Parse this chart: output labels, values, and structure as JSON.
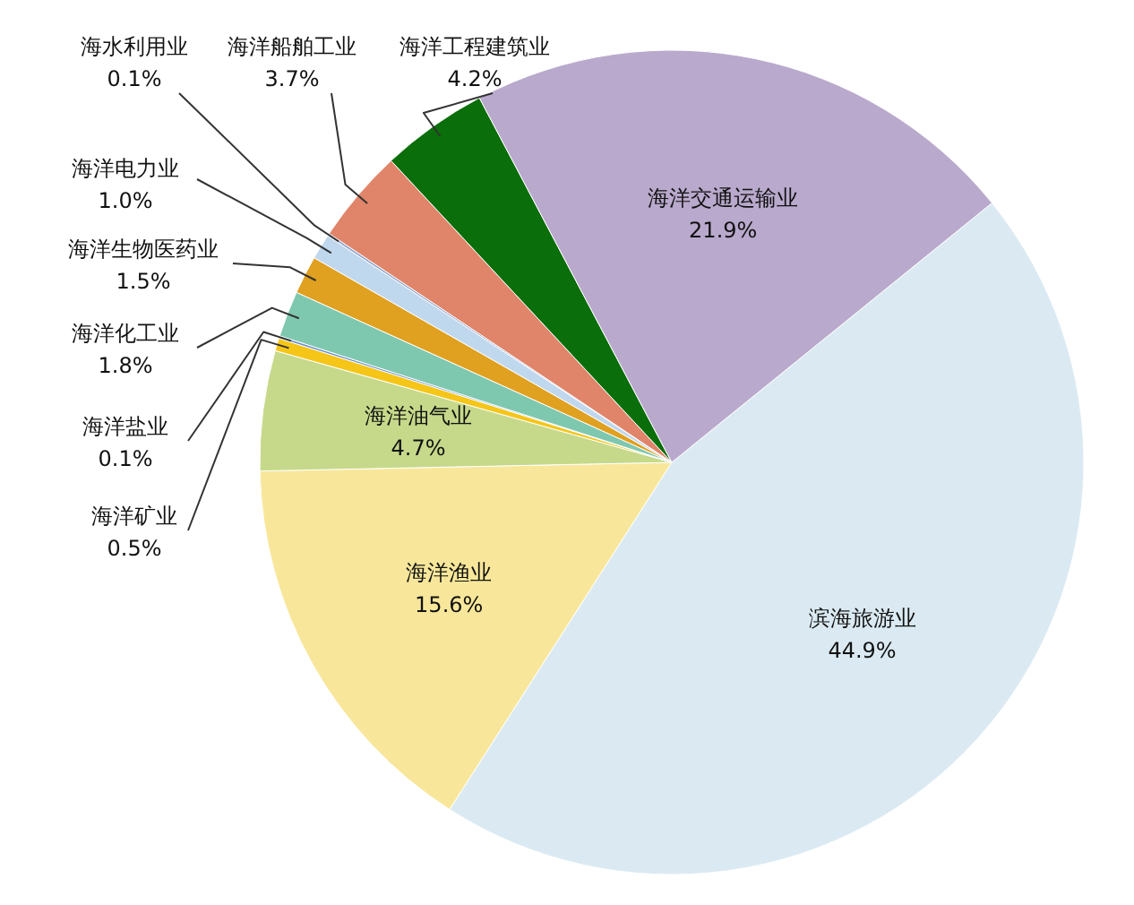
{
  "chart_data": {
    "type": "pie",
    "categories": [
      "滨海旅游业",
      "海洋渔业",
      "海洋油气业",
      "海洋矿业",
      "海洋盐业",
      "海洋化工业",
      "海洋生物医药业",
      "海洋电力业",
      "海水利用业",
      "海洋船舶工业",
      "海洋工程建筑业",
      "海洋交通运输业"
    ],
    "values": [
      44.9,
      15.6,
      4.7,
      0.5,
      0.1,
      1.8,
      1.5,
      1.0,
      0.1,
      3.7,
      4.2,
      21.9
    ],
    "value_labels": [
      "44.9%",
      "15.6%",
      "4.7%",
      "0.5%",
      "0.1%",
      "1.8%",
      "1.5%",
      "1.0%",
      "0.1%",
      "3.7%",
      "4.2%",
      "21.9%"
    ],
    "colors": [
      "#dbeaf2",
      "#f8e79a",
      "#c6d98a",
      "#f5c518",
      "#6a8fc8",
      "#7fc8b0",
      "#e0a020",
      "#c0d8ee",
      "#8fa7d0",
      "#e0856a",
      "#0a6e0a",
      "#b9a9cc"
    ]
  }
}
